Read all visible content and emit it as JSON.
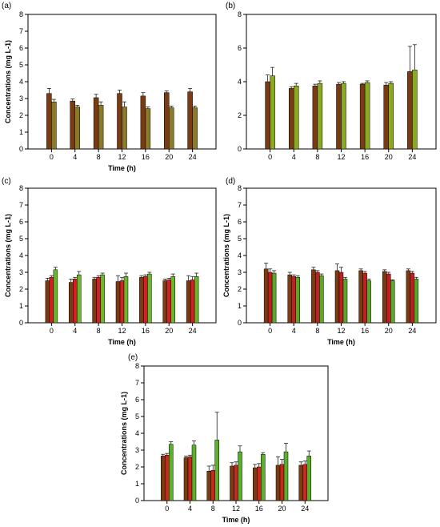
{
  "chart_data": [
    {
      "type": "bar",
      "panel_label": "(a)",
      "categories": [
        "0",
        "4",
        "8",
        "12",
        "16",
        "20",
        "24"
      ],
      "xlabel": "Time (h)",
      "ylabel": "Concentrations (mg L-1)",
      "ylim": [
        0,
        8
      ],
      "yticks": [
        "0",
        "1",
        "2",
        "3",
        "4",
        "5",
        "6",
        "7",
        "8"
      ],
      "series": [
        {
          "color": "#7a3b12",
          "values": [
            3.3,
            2.85,
            3.05,
            3.3,
            3.15,
            3.35,
            3.4
          ],
          "errors": [
            0.3,
            0.12,
            0.2,
            0.2,
            0.2,
            0.1,
            0.2
          ]
        },
        {
          "color": "#8a7a2a",
          "values": [
            2.8,
            2.5,
            2.6,
            2.5,
            2.4,
            2.45,
            2.45
          ],
          "errors": [
            0.15,
            0.1,
            0.2,
            0.3,
            0.1,
            0.1,
            0.1
          ]
        }
      ]
    },
    {
      "type": "bar",
      "panel_label": "(b)",
      "categories": [
        "0",
        "4",
        "8",
        "12",
        "16",
        "20",
        "24"
      ],
      "xlabel": "",
      "ylabel": "",
      "ylim": [
        0,
        8
      ],
      "yticks": [
        "0",
        "2",
        "4",
        "6",
        "8"
      ],
      "series": [
        {
          "color": "#7a3b12",
          "values": [
            4.0,
            3.6,
            3.75,
            3.85,
            3.85,
            3.8,
            4.6
          ],
          "errors": [
            0.4,
            0.1,
            0.1,
            0.1,
            0.05,
            0.15,
            1.5
          ]
        },
        {
          "color": "#8aaa22",
          "values": [
            4.35,
            3.75,
            3.9,
            3.9,
            3.95,
            3.9,
            4.7
          ],
          "errors": [
            0.5,
            0.15,
            0.15,
            0.1,
            0.1,
            0.1,
            1.5
          ]
        }
      ]
    },
    {
      "type": "bar",
      "panel_label": "(c)",
      "categories": [
        "0",
        "4",
        "8",
        "12",
        "16",
        "20",
        "24"
      ],
      "xlabel": "Time (h)",
      "ylabel": "Concentrations (mg L-1)",
      "ylim": [
        0,
        8
      ],
      "yticks": [
        "0",
        "1",
        "2",
        "3",
        "4",
        "5",
        "6",
        "7",
        "8"
      ],
      "series": [
        {
          "color": "#7a3b12",
          "values": [
            2.5,
            2.4,
            2.6,
            2.45,
            2.7,
            2.5,
            2.5
          ],
          "errors": [
            0.15,
            0.2,
            0.1,
            0.35,
            0.1,
            0.1,
            0.3
          ]
        },
        {
          "color": "#d42020",
          "values": [
            2.7,
            2.6,
            2.7,
            2.5,
            2.75,
            2.55,
            2.55
          ],
          "errors": [
            0.1,
            0.1,
            0.1,
            0.2,
            0.1,
            0.1,
            0.2
          ]
        },
        {
          "color": "#6ab82a",
          "values": [
            3.15,
            2.85,
            2.85,
            2.75,
            2.9,
            2.75,
            2.75
          ],
          "errors": [
            0.15,
            0.2,
            0.1,
            0.2,
            0.1,
            0.15,
            0.2
          ]
        }
      ]
    },
    {
      "type": "bar",
      "panel_label": "(d)",
      "categories": [
        "0",
        "4",
        "8",
        "12",
        "16",
        "20",
        "24"
      ],
      "xlabel": "Time (h)",
      "ylabel": "Concentrations (mg L-1)",
      "ylim": [
        0,
        8
      ],
      "yticks": [
        "0",
        "1",
        "2",
        "3",
        "4",
        "5",
        "6",
        "7",
        "8"
      ],
      "series": [
        {
          "color": "#7a3b12",
          "values": [
            3.2,
            2.85,
            3.15,
            3.1,
            3.1,
            3.05,
            3.1
          ],
          "errors": [
            0.35,
            0.15,
            0.15,
            0.4,
            0.1,
            0.1,
            0.1
          ]
        },
        {
          "color": "#c02020",
          "values": [
            3.0,
            2.75,
            3.0,
            3.0,
            2.95,
            2.9,
            2.95
          ],
          "errors": [
            0.2,
            0.1,
            0.1,
            0.3,
            0.1,
            0.1,
            0.1
          ]
        },
        {
          "color": "#5aa82a",
          "values": [
            2.95,
            2.7,
            2.8,
            2.6,
            2.5,
            2.5,
            2.6
          ],
          "errors": [
            0.15,
            0.1,
            0.1,
            0.1,
            0.1,
            0.05,
            0.1
          ]
        }
      ]
    },
    {
      "type": "bar",
      "panel_label": "(e)",
      "categories": [
        "0",
        "4",
        "8",
        "12",
        "16",
        "20",
        "24"
      ],
      "xlabel": "Time (h)",
      "ylabel": "Concentrations (mg L-1)",
      "ylim": [
        0,
        8
      ],
      "yticks": [
        "0",
        "1",
        "2",
        "3",
        "4",
        "5",
        "6",
        "7",
        "8"
      ],
      "series": [
        {
          "color": "#7a3b12",
          "values": [
            2.65,
            2.55,
            1.75,
            2.05,
            1.95,
            2.1,
            2.1
          ],
          "errors": [
            0.1,
            0.1,
            0.3,
            0.2,
            0.2,
            0.5,
            0.2
          ]
        },
        {
          "color": "#c62a1a",
          "values": [
            2.7,
            2.6,
            1.8,
            2.1,
            2.0,
            2.15,
            2.15
          ],
          "errors": [
            0.1,
            0.1,
            0.3,
            0.2,
            0.2,
            0.3,
            0.2
          ]
        },
        {
          "color": "#5ab02a",
          "values": [
            3.35,
            3.3,
            3.6,
            2.9,
            2.75,
            2.9,
            2.65
          ],
          "errors": [
            0.15,
            0.25,
            1.65,
            0.35,
            0.1,
            0.5,
            0.3
          ]
        }
      ]
    }
  ]
}
